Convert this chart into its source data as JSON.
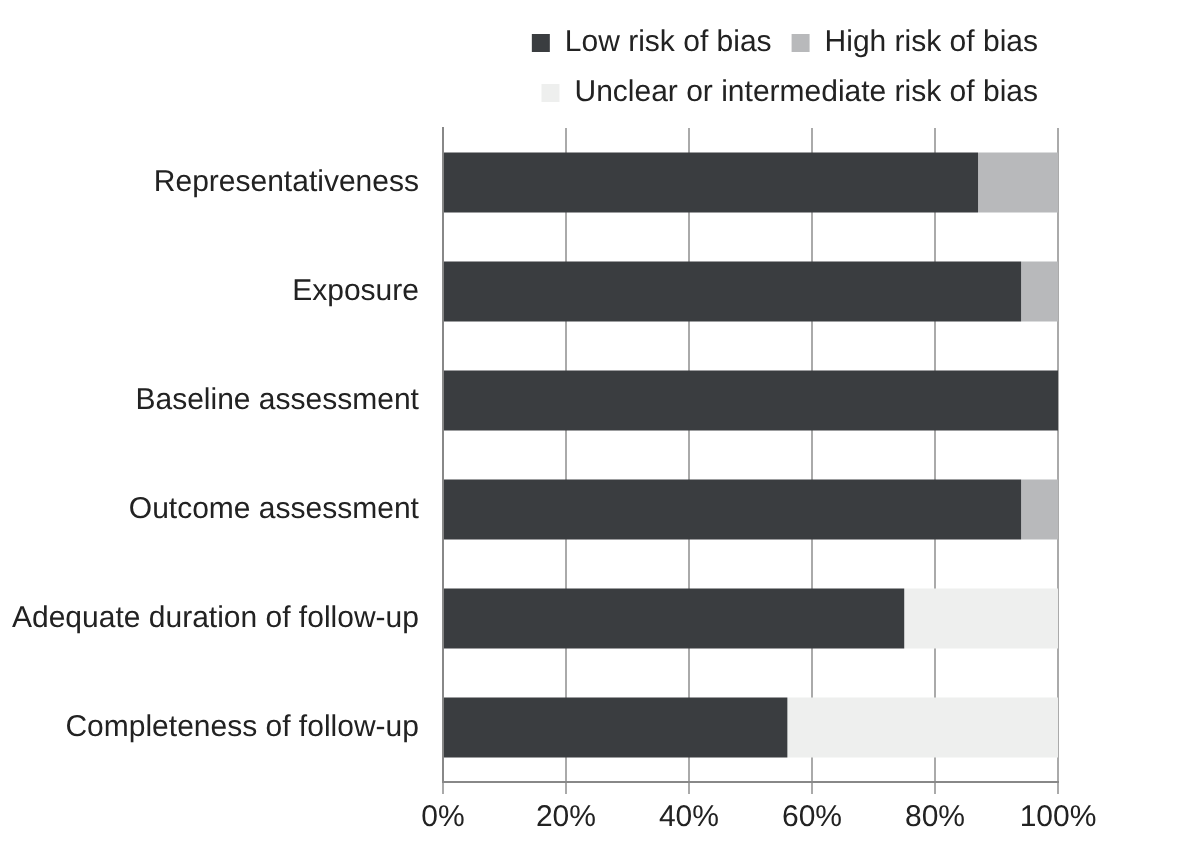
{
  "chart_data": {
    "type": "bar",
    "orientation": "horizontal",
    "stacked": true,
    "categories": [
      "Representativeness",
      "Exposure",
      "Baseline assessment",
      "Outcome assessment",
      "Adequate duration of follow-up",
      "Completeness of follow-up"
    ],
    "series": [
      {
        "name": "Low risk of bias",
        "color": "#3a3d40",
        "values": [
          87,
          94,
          100,
          94,
          75,
          56
        ]
      },
      {
        "name": "High risk of bias",
        "color": "#b8b9bb",
        "values": [
          13,
          6,
          0,
          6,
          0,
          0
        ]
      },
      {
        "name": "Unclear or intermediate risk of bias",
        "color": "#eeefee",
        "values": [
          0,
          0,
          0,
          0,
          25,
          44
        ]
      }
    ],
    "xlim": [
      0,
      100
    ],
    "xticks": [
      {
        "value": 0,
        "label": "0%"
      },
      {
        "value": 20,
        "label": "20%"
      },
      {
        "value": 40,
        "label": "40%"
      },
      {
        "value": 60,
        "label": "60%"
      },
      {
        "value": 80,
        "label": "80%"
      },
      {
        "value": 100,
        "label": "100%"
      }
    ],
    "grid": "x",
    "legend": "top right"
  }
}
